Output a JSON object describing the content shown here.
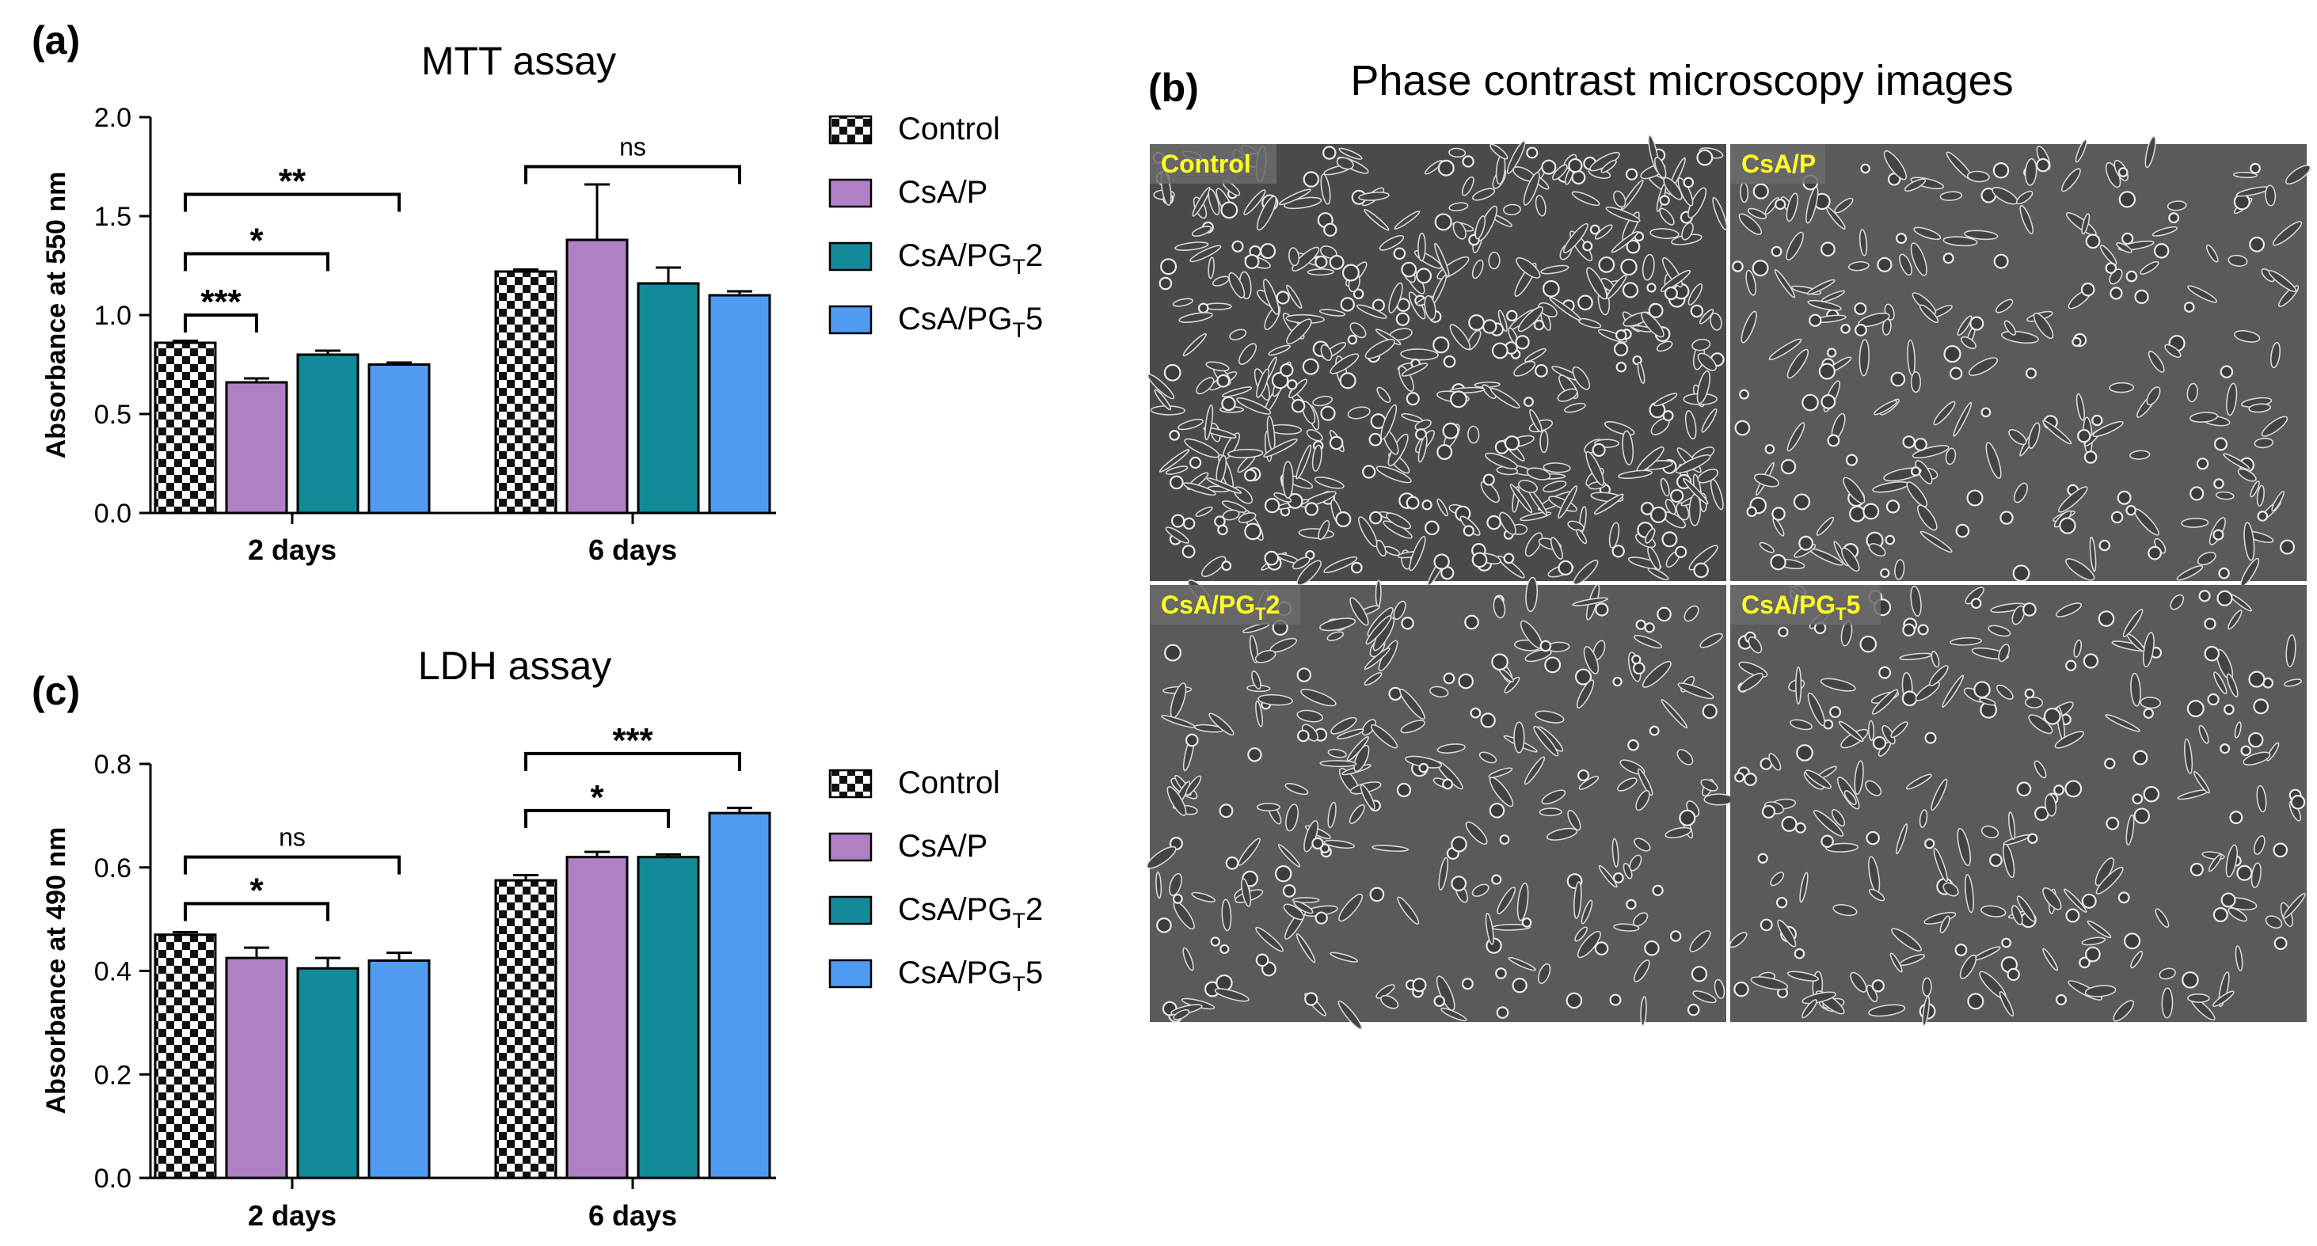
{
  "colors": {
    "control_check_dark": "#111111",
    "csa_p": "#b07fc4",
    "csa_pgt2": "#128a98",
    "csa_pgt5": "#4f9bf2",
    "micro_label_text": "#ffff22",
    "micro_label_bg": "#6b6b6b"
  },
  "chart_data": [
    {
      "panel": "(a)",
      "type": "bar",
      "title": "MTT assay",
      "ylabel": "Absorbance at 550 nm",
      "xlabel": "",
      "ylim": [
        0,
        2.0
      ],
      "yticks": [
        "0.0",
        "0.5",
        "1.0",
        "1.5",
        "2.0"
      ],
      "ytick_values": [
        0,
        0.5,
        1.0,
        1.5,
        2.0
      ],
      "categories": [
        "2 days",
        "6 days"
      ],
      "legend_position": "right",
      "series": [
        {
          "name": "Control",
          "sub": "",
          "suffix": "",
          "values": [
            0.86,
            1.22
          ],
          "errors": [
            0.01,
            0.01
          ]
        },
        {
          "name": "CsA/P",
          "sub": "",
          "suffix": "",
          "values": [
            0.66,
            1.38
          ],
          "errors": [
            0.02,
            0.28
          ]
        },
        {
          "name": "CsA/PG",
          "sub": "T",
          "suffix": "2",
          "values": [
            0.8,
            1.16
          ],
          "errors": [
            0.02,
            0.08
          ]
        },
        {
          "name": "CsA/PG",
          "sub": "T",
          "suffix": "5",
          "values": [
            0.75,
            1.1
          ],
          "errors": [
            0.01,
            0.02
          ]
        }
      ],
      "significance": [
        {
          "label": "***",
          "group": 0,
          "from": 0,
          "to": 1,
          "level": 1.0
        },
        {
          "label": "*",
          "group": 0,
          "from": 0,
          "to": 2,
          "level": 1.31
        },
        {
          "label": "**",
          "group": 0,
          "from": 0,
          "to": 3,
          "level": 1.61
        },
        {
          "label": "ns",
          "group": 1,
          "from": 0,
          "to": 3,
          "level": 1.75
        }
      ]
    },
    {
      "panel": "(c)",
      "type": "bar",
      "title": "LDH assay",
      "ylabel": "Absorbance at 490 nm",
      "xlabel": "",
      "ylim": [
        0,
        0.8
      ],
      "yticks": [
        "0.0",
        "0.2",
        "0.4",
        "0.6",
        "0.8"
      ],
      "ytick_values": [
        0,
        0.2,
        0.4,
        0.6,
        0.8
      ],
      "categories": [
        "2 days",
        "6 days"
      ],
      "legend_position": "right",
      "series": [
        {
          "name": "Control",
          "sub": "",
          "suffix": "",
          "values": [
            0.47,
            0.575
          ],
          "errors": [
            0.005,
            0.01
          ]
        },
        {
          "name": "CsA/P",
          "sub": "",
          "suffix": "",
          "values": [
            0.425,
            0.62
          ],
          "errors": [
            0.02,
            0.01
          ]
        },
        {
          "name": "CsA/PG",
          "sub": "T",
          "suffix": "2",
          "values": [
            0.405,
            0.62
          ],
          "errors": [
            0.02,
            0.005
          ]
        },
        {
          "name": "CsA/PG",
          "sub": "T",
          "suffix": "5",
          "values": [
            0.42,
            0.705
          ],
          "errors": [
            0.015,
            0.01
          ]
        }
      ],
      "significance": [
        {
          "label": "*",
          "group": 0,
          "from": 0,
          "to": 2,
          "level": 0.53
        },
        {
          "label": "ns",
          "group": 0,
          "from": 0,
          "to": 3,
          "level": 0.62
        },
        {
          "label": "*",
          "group": 1,
          "from": 0,
          "to": 2,
          "level": 0.71
        },
        {
          "label": "***",
          "group": 1,
          "from": 0,
          "to": 3,
          "level": 0.82
        }
      ]
    }
  ],
  "microscopy": {
    "panel": "(b)",
    "title": "Phase contrast microscopy images",
    "images": [
      {
        "label": "Control",
        "sub": "",
        "suffix": "",
        "density": "high"
      },
      {
        "label": "CsA/P",
        "sub": "",
        "suffix": "",
        "density": "medium"
      },
      {
        "label": "CsA/PG",
        "sub": "T",
        "suffix": "2",
        "density": "medium"
      },
      {
        "label": "CsA/PG",
        "sub": "T",
        "suffix": "5",
        "density": "medium"
      }
    ]
  }
}
